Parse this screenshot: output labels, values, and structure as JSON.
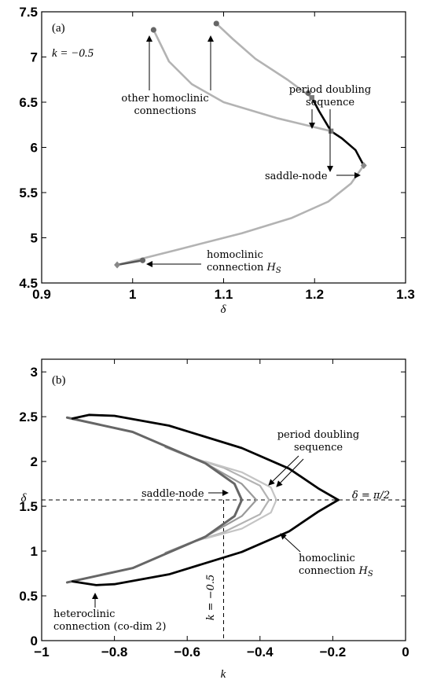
{
  "chart_data": [
    {
      "type": "line",
      "panel_label": "(a)",
      "parameter_label": "k = −0.5",
      "xlabel": "δ",
      "ylabel": "",
      "xlim": [
        0.9,
        1.3
      ],
      "ylim": [
        4.5,
        7.5
      ],
      "xticks": [
        "0.9",
        "1",
        "1.1",
        "1.2",
        "1.3"
      ],
      "yticks": [
        "4.5",
        "5",
        "5.5",
        "6",
        "6.5",
        "7",
        "7.5"
      ],
      "series": [
        {
          "role": "lower-branch",
          "color": "#b3b3b3",
          "x": [
            0.983,
            1.05,
            1.12,
            1.175,
            1.215,
            1.24,
            1.254
          ],
          "y": [
            4.7,
            4.87,
            5.05,
            5.22,
            5.4,
            5.6,
            5.8
          ]
        },
        {
          "role": "middle-branch",
          "color": "#000000",
          "x": [
            1.254,
            1.245,
            1.23,
            1.218,
            1.205,
            1.197
          ],
          "y": [
            5.8,
            5.97,
            6.1,
            6.18,
            6.4,
            6.55
          ]
        },
        {
          "role": "branch-to-upper-left",
          "color": "#b3b3b3",
          "x": [
            1.218,
            1.16,
            1.1,
            1.065,
            1.04,
            1.023
          ],
          "y": [
            6.18,
            6.32,
            6.5,
            6.7,
            6.95,
            7.3
          ]
        },
        {
          "role": "branch-to-upper-right",
          "color": "#b3b3b3",
          "x": [
            1.197,
            1.17,
            1.135,
            1.11,
            1.092
          ],
          "y": [
            6.55,
            6.75,
            6.98,
            7.2,
            7.37
          ]
        },
        {
          "role": "hs-segment",
          "color": "#555555",
          "x": [
            0.983,
            1.011
          ],
          "y": [
            4.7,
            4.75
          ]
        }
      ],
      "points": [
        {
          "x": 1.023,
          "y": 7.3,
          "shape": "circle"
        },
        {
          "x": 1.092,
          "y": 7.37,
          "shape": "circle"
        },
        {
          "x": 1.193,
          "y": 6.6,
          "shape": "circle"
        },
        {
          "x": 1.197,
          "y": 6.55,
          "shape": "square"
        },
        {
          "x": 1.218,
          "y": 6.18,
          "shape": "square"
        },
        {
          "x": 1.254,
          "y": 5.8,
          "shape": "diamond"
        },
        {
          "x": 0.983,
          "y": 4.7,
          "shape": "diamond"
        },
        {
          "x": 1.011,
          "y": 4.75,
          "shape": "circle"
        }
      ],
      "annotations": [
        {
          "lines": [
            "other homoclinic",
            "connections"
          ]
        },
        {
          "lines": [
            "period doubling",
            "sequence"
          ]
        },
        {
          "lines": [
            "saddle-node"
          ]
        },
        {
          "lines": [
            "homoclinic",
            "connection H_S"
          ]
        }
      ]
    },
    {
      "type": "line",
      "panel_label": "(b)",
      "xlabel": "k",
      "ylabel": "δ",
      "xlim": [
        -1,
        0
      ],
      "ylim": [
        0,
        3.1416
      ],
      "xticks": [
        "−1",
        "−0.8",
        "−0.6",
        "−0.4",
        "−0.2",
        "0"
      ],
      "yticks": [
        "0",
        "0.5",
        "1",
        "1.5",
        "2",
        "2.5",
        "3"
      ],
      "reference_lines": [
        {
          "label": "δ = π/2",
          "axis": "y",
          "value": 1.5708
        },
        {
          "label": "k = −0.5",
          "axis": "x",
          "value": -0.5
        }
      ],
      "series": [
        {
          "role": "outer-black-upper",
          "color": "#000000",
          "x": [
            -0.915,
            -0.87,
            -0.8,
            -0.65,
            -0.45,
            -0.32,
            -0.24,
            -0.185
          ],
          "y": [
            2.48,
            2.52,
            2.51,
            2.4,
            2.15,
            1.92,
            1.7,
            1.5708
          ]
        },
        {
          "role": "outer-black-lower",
          "color": "#000000",
          "x": [
            -0.185,
            -0.24,
            -0.32,
            -0.45,
            -0.65,
            -0.8,
            -0.85,
            -0.915
          ],
          "y": [
            1.5708,
            1.44,
            1.22,
            0.99,
            0.74,
            0.63,
            0.62,
            0.66
          ]
        },
        {
          "role": "inner-dark-gray",
          "color": "#666666",
          "x": [
            -0.93,
            -0.75,
            -0.55,
            -0.47,
            -0.45,
            -0.47,
            -0.55,
            -0.75,
            -0.93
          ],
          "y": [
            2.49,
            2.33,
            1.98,
            1.75,
            1.5708,
            1.39,
            1.16,
            0.81,
            0.65
          ]
        },
        {
          "role": "gray-1",
          "color": "#999999",
          "x": [
            -0.66,
            -0.55,
            -0.45,
            -0.41,
            -0.45,
            -0.55,
            -0.66
          ],
          "y": [
            2.16,
            1.98,
            1.75,
            1.5708,
            1.39,
            1.16,
            0.98
          ]
        },
        {
          "role": "gray-2",
          "color": "#b3b3b3",
          "x": [
            -0.6,
            -0.5,
            -0.4,
            -0.375,
            -0.4,
            -0.5,
            -0.6
          ],
          "y": [
            2.06,
            1.93,
            1.73,
            1.5708,
            1.41,
            1.21,
            1.08
          ]
        },
        {
          "role": "gray-3",
          "color": "#c4c4c4",
          "x": [
            -0.55,
            -0.45,
            -0.37,
            -0.355,
            -0.37,
            -0.45,
            -0.55
          ],
          "y": [
            2.0,
            1.88,
            1.71,
            1.5708,
            1.43,
            1.25,
            1.14
          ]
        }
      ],
      "annotations": [
        {
          "lines": [
            "period doubling",
            "sequence"
          ]
        },
        {
          "lines": [
            "saddle-node"
          ]
        },
        {
          "lines": [
            "homoclinic",
            "connection H_S"
          ]
        },
        {
          "lines": [
            "heteroclinic",
            "connection (co-dim 2)"
          ]
        }
      ]
    }
  ]
}
